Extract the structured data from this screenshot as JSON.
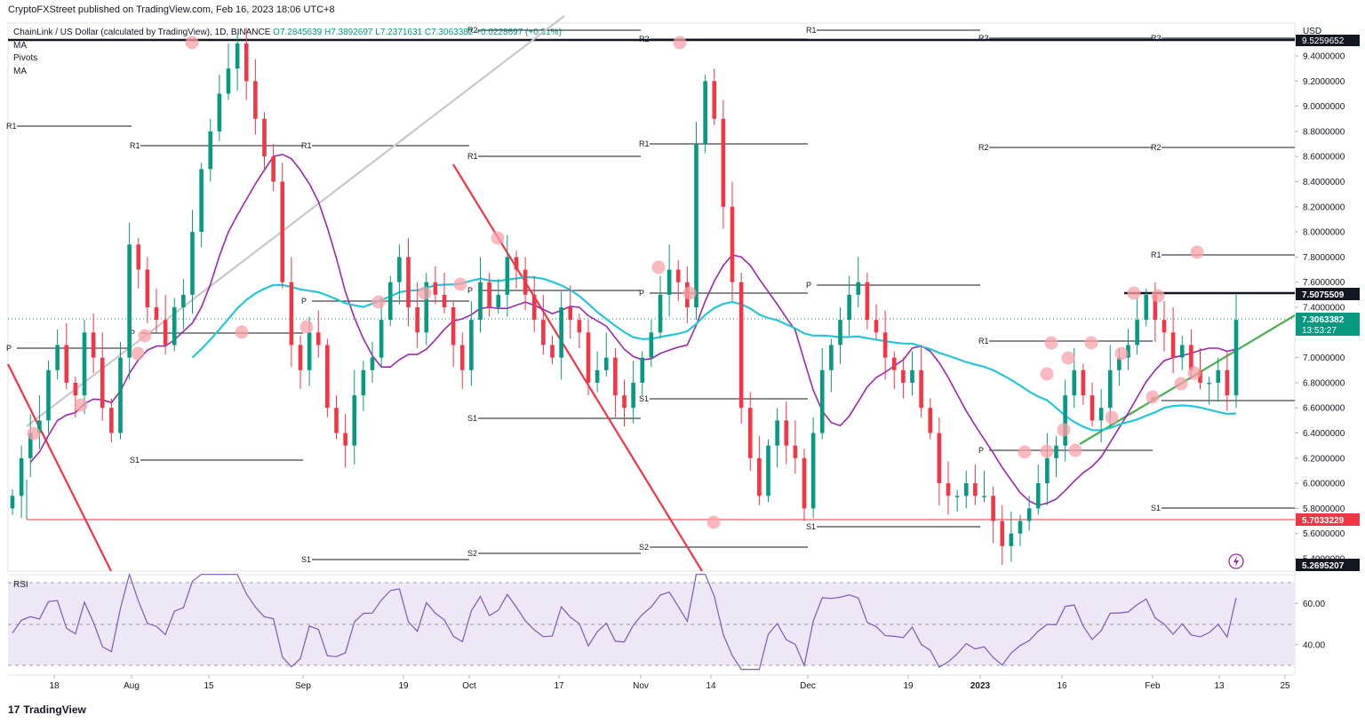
{
  "header": {
    "published_by": "CryptoFXStreet published on TradingView.com, Feb 16, 2023 18:06 UTC+8"
  },
  "legend": {
    "symbol": "ChainLink / US Dollar (calculated by TradingView), 1D, BINANCE",
    "ohlc": "O7.2845639 H7.3892697 L7.2371631 C7.3063382 +0.0228697 (+0.31%)",
    "indicators": [
      "MA",
      "Pivots",
      "MA"
    ]
  },
  "branding": {
    "logo_text": "17",
    "name": "TradingView"
  },
  "price_axis": {
    "currency": "USD",
    "ticks": [
      "9.4000000",
      "9.2000000",
      "9.0000000",
      "8.8000000",
      "8.6000000",
      "8.4000000",
      "8.2000000",
      "8.0000000",
      "7.8000000",
      "7.6000000",
      "7.4000000",
      "7.0000000",
      "6.8000000",
      "6.6000000",
      "6.4000000",
      "6.2000000",
      "6.0000000",
      "5.8000000",
      "5.6000000",
      "5.4000000"
    ],
    "top_label": "9.5259652",
    "tag_resistance": "7.5075509",
    "tag_price": "7.3063382",
    "tag_countdown": "13:53:27",
    "tag_support": "5.7033229",
    "tag_low": "5.2695207"
  },
  "time_axis": [
    "18",
    "Aug",
    "15",
    "Sep",
    "19",
    "Oct",
    "17",
    "Nov",
    "14",
    "Dec",
    "19",
    "2023",
    "16",
    "Feb",
    "13",
    "25"
  ],
  "rsi": {
    "label": "RSI",
    "ticks": [
      "60.00",
      "40.00"
    ]
  },
  "pivot_labels": [
    "R2",
    "R1",
    "P",
    "S1",
    "S2",
    "R3"
  ],
  "colors": {
    "up": "#089981",
    "down": "#f23645",
    "ma_long": "#26c6da",
    "ma_short": "#9c27b0",
    "trend_green": "#4caf50",
    "trend_red": "#f23645",
    "trend_gray": "#c8c8c8",
    "rsi_line": "#7e57c2",
    "rsi_band": "#ede7f6",
    "circle": "#f7a1a8"
  },
  "chart_data": {
    "type": "candlestick",
    "symbol": "LINK/USD",
    "timeframe": "1D",
    "x_range": [
      "2022-07-13",
      "2023-02-16"
    ],
    "y_range": [
      5.27,
      9.53
    ],
    "close_series": [
      5.9,
      6.2,
      6.4,
      6.5,
      6.9,
      7.1,
      6.8,
      6.7,
      7.2,
      7.0,
      6.6,
      6.4,
      7.0,
      7.9,
      7.7,
      7.4,
      7.3,
      7.1,
      7.4,
      7.5,
      8.0,
      8.5,
      8.8,
      9.1,
      9.3,
      9.5,
      9.2,
      8.9,
      8.6,
      8.4,
      7.6,
      7.1,
      6.9,
      7.2,
      7.1,
      6.6,
      6.4,
      6.3,
      6.7,
      6.9,
      7.0,
      7.3,
      7.6,
      7.8,
      7.4,
      7.2,
      7.6,
      7.5,
      7.4,
      7.1,
      6.9,
      7.3,
      7.6,
      7.4,
      7.5,
      7.8,
      7.7,
      7.5,
      7.3,
      7.1,
      7.0,
      7.4,
      7.3,
      7.2,
      6.8,
      6.9,
      7.0,
      6.7,
      6.6,
      6.8,
      7.0,
      7.2,
      7.5,
      7.7,
      7.6,
      7.4,
      8.7,
      9.2,
      8.9,
      8.2,
      7.6,
      6.6,
      6.2,
      5.9,
      6.3,
      6.5,
      6.3,
      6.2,
      5.8,
      6.4,
      6.9,
      7.1,
      7.3,
      7.5,
      7.6,
      7.3,
      7.2,
      7.0,
      6.9,
      6.8,
      6.9,
      6.6,
      6.4,
      6.0,
      5.9,
      5.9,
      6.0,
      5.9,
      5.9,
      5.7,
      5.5,
      5.6,
      5.7,
      5.8,
      6.0,
      6.2,
      6.3,
      6.7,
      6.9,
      6.7,
      6.5,
      6.6,
      6.9,
      7.0,
      7.1,
      7.3,
      7.5,
      7.3,
      7.2,
      7.0,
      7.1,
      6.9,
      6.8,
      6.8,
      6.9,
      6.7,
      7.3
    ],
    "moving_averages": [
      {
        "name": "MA",
        "color": "#26c6da",
        "approx_last": 7.02
      },
      {
        "name": "MA",
        "color": "#9c27b0",
        "approx_last": 6.55
      }
    ],
    "horizontal_levels": [
      {
        "label": "resistance",
        "value": 7.5075509
      },
      {
        "label": "support",
        "value": 5.7033229
      },
      {
        "label": "top",
        "value": 9.5259652
      }
    ],
    "rsi": {
      "upper_band": 70,
      "lower_band": 30,
      "approx_last": 57
    }
  }
}
